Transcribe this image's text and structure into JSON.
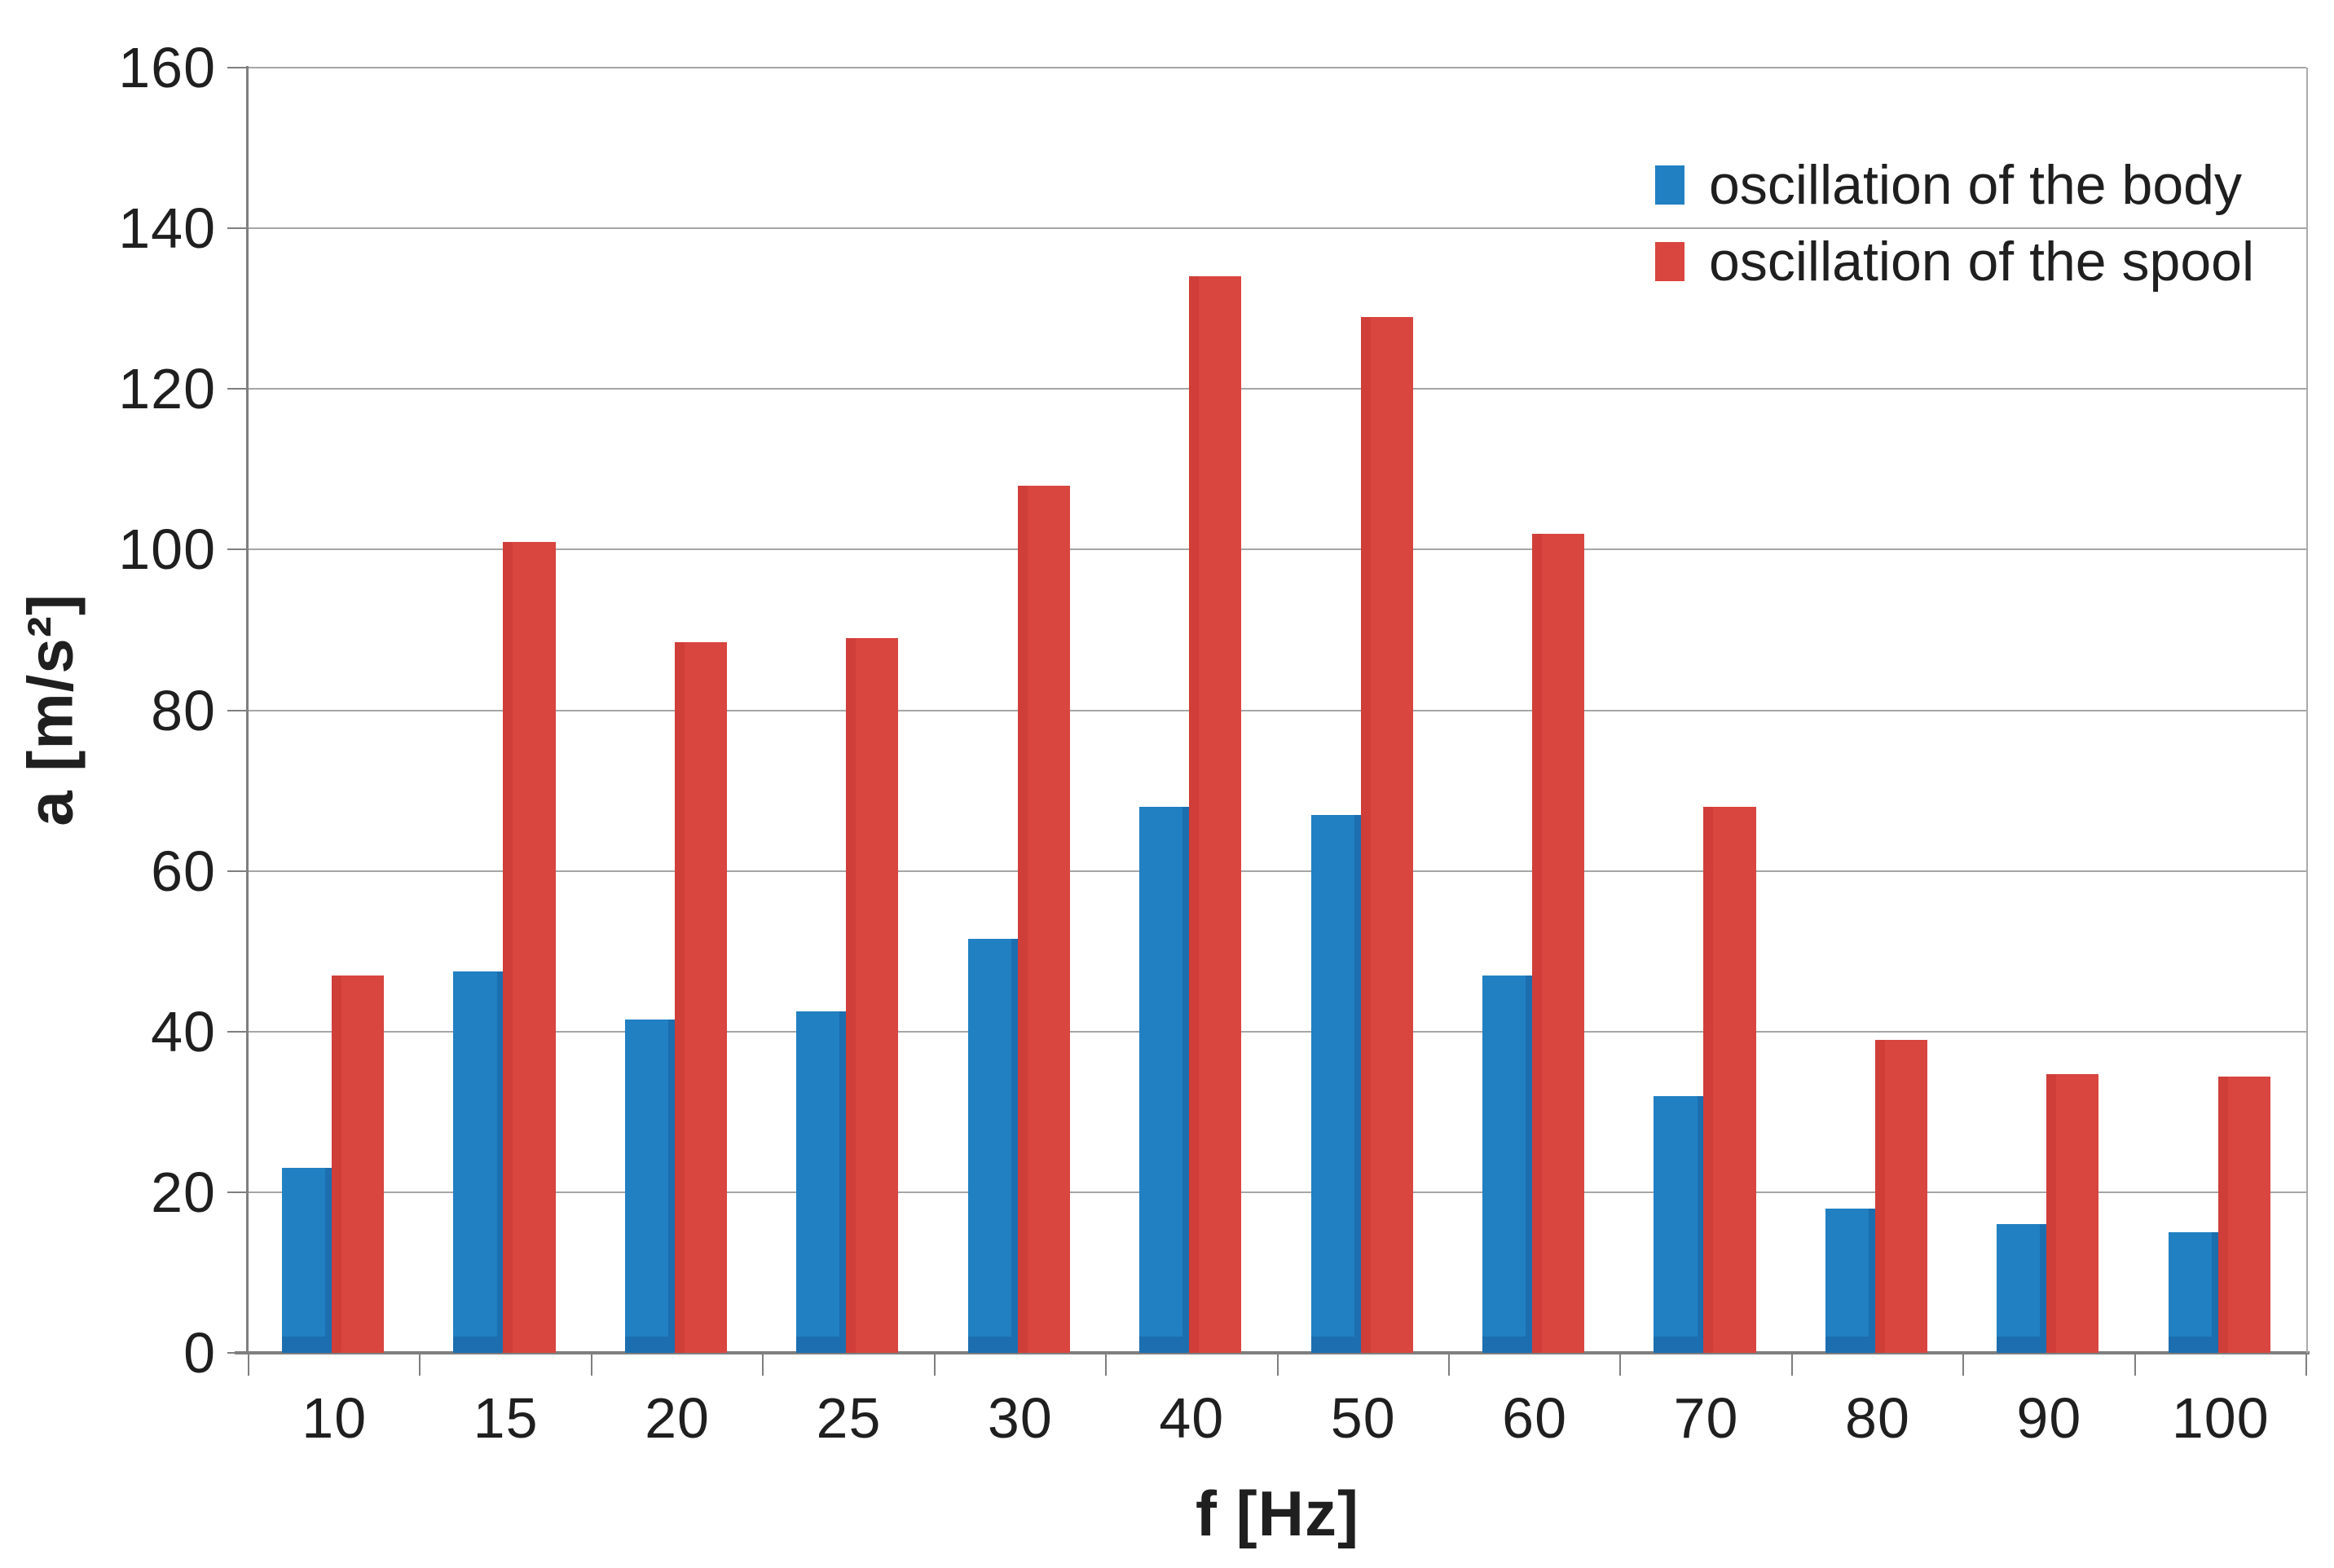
{
  "chart_data": {
    "type": "bar",
    "title": "",
    "xlabel": "f [Hz]",
    "ylabel": "a [m/s²]",
    "categories": [
      "10",
      "15",
      "20",
      "25",
      "30",
      "40",
      "50",
      "60",
      "70",
      "80",
      "90",
      "100"
    ],
    "series": [
      {
        "name": "oscillation of the body",
        "color": "#2180c2",
        "values": [
          23,
          47.5,
          41.5,
          42.5,
          51.5,
          68,
          67,
          47,
          32,
          18,
          16,
          15
        ]
      },
      {
        "name": "oscillation of the spool",
        "color": "#d9453f",
        "values": [
          47,
          101,
          88.5,
          89,
          108,
          134,
          129,
          102,
          68,
          39,
          34.7,
          34.4
        ]
      }
    ],
    "ylim": [
      0,
      160
    ],
    "ytick_step": 20,
    "y_tick_labels": [
      "0",
      "20",
      "40",
      "60",
      "80",
      "100",
      "120",
      "140",
      "160"
    ],
    "grid": true,
    "legend_position": "top-right",
    "colors": {
      "gridline": "#a6a6a6",
      "axis": "#7f7f7f",
      "background": "#ffffff",
      "text": "#1f1f1f"
    }
  }
}
